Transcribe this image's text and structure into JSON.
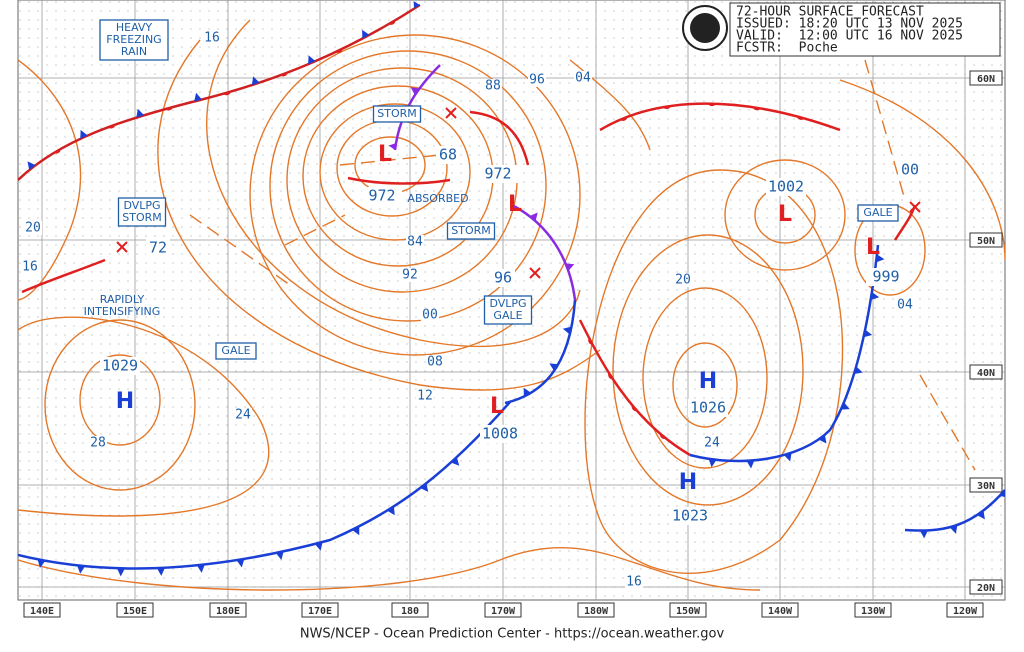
{
  "header": {
    "title": "72-HOUR SURFACE FORECAST",
    "issued": "ISSUED: 18:20 UTC 13 NOV 2025",
    "valid": "VALID:  12:00 UTC 16 NOV 2025",
    "forecaster": "FCSTR:  Poche"
  },
  "footer": "NWS/NCEP - Ocean Prediction Center - https://ocean.weather.gov",
  "longitude_labels": [
    "140E",
    "150E",
    "180E",
    "170E",
    "180",
    "170W",
    "180W",
    "150W",
    "140W",
    "130W",
    "120W"
  ],
  "latitude_labels": [
    "60N",
    "50N",
    "40N",
    "30N",
    "20N"
  ],
  "warnings": [
    {
      "lines": [
        "HEAVY",
        "FREEZING",
        "RAIN"
      ]
    },
    {
      "lines": [
        "DVLPG",
        "STORM"
      ]
    },
    {
      "lines": [
        "STORM"
      ]
    },
    {
      "lines": [
        "STORM"
      ]
    },
    {
      "lines": [
        "DVLPG",
        "GALE"
      ]
    },
    {
      "lines": [
        "GALE"
      ]
    },
    {
      "lines": [
        "GALE"
      ]
    }
  ],
  "notes": [
    {
      "lines": [
        "RAPIDLY",
        "INTENSIFYING"
      ]
    },
    {
      "lines": [
        "ABSORBED"
      ]
    }
  ],
  "centers": [
    {
      "symbol": "H",
      "pressure": "1029"
    },
    {
      "symbol": "H",
      "pressure": "1026"
    },
    {
      "symbol": "H",
      "pressure": "1023"
    },
    {
      "symbol": "L",
      "pressure": "972"
    },
    {
      "symbol": "L",
      "pressure": "972"
    },
    {
      "symbol": "L",
      "pressure": "1008"
    },
    {
      "symbol": "L",
      "pressure": "1002"
    },
    {
      "symbol": "L",
      "pressure": "999"
    }
  ],
  "forecast_position_labels": [
    "72",
    "68",
    "96",
    "00"
  ],
  "isobar_labels": [
    "16",
    "20",
    "16",
    "28",
    "24",
    "84",
    "92",
    "00",
    "08",
    "12",
    "88",
    "96",
    "04",
    "20",
    "24",
    "04",
    "16"
  ]
}
